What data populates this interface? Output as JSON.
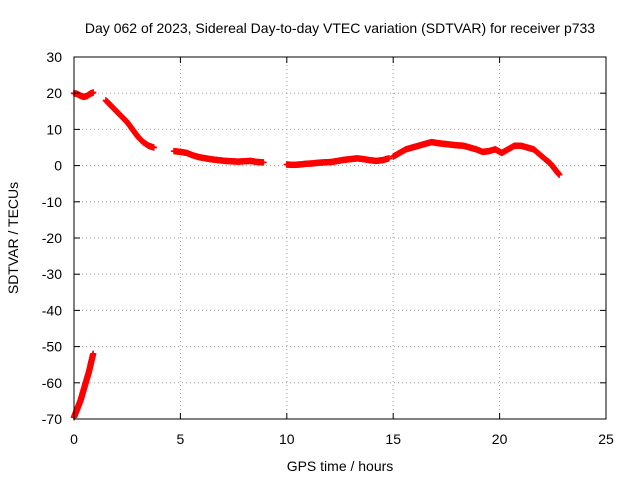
{
  "chart_data": {
    "type": "scatter",
    "title": "Day 062 of 2023, Sidereal Day-to-day VTEC variation (SDTVAR) for receiver p733",
    "xlabel": "GPS time / hours",
    "ylabel": "SDTVAR / TECUs",
    "xlim": [
      0,
      25
    ],
    "ylim": [
      -70,
      30
    ],
    "xticks": [
      "0",
      "5",
      "10",
      "15",
      "20",
      "25"
    ],
    "yticks": [
      "30",
      "20",
      "10",
      "0",
      "-10",
      "-20",
      "-30",
      "-40",
      "-50",
      "-60",
      "-70"
    ],
    "grid": true,
    "marker": "plus",
    "color": "#ff0000",
    "series": [
      {
        "name": "SDTVAR",
        "segments": [
          {
            "x": [
              0.0,
              0.1,
              0.2,
              0.3,
              0.4,
              0.5,
              0.6,
              0.7,
              0.8,
              0.9
            ],
            "y": [
              -69.5,
              -68.0,
              -66.5,
              -65.0,
              -63.0,
              -61.0,
              -59.0,
              -57.0,
              -54.5,
              -52.0
            ]
          },
          {
            "x": [
              0.0,
              0.15,
              0.3,
              0.45,
              0.6,
              0.75,
              0.9
            ],
            "y": [
              20.0,
              19.8,
              19.3,
              19.0,
              19.2,
              19.8,
              20.2
            ]
          },
          {
            "x": [
              1.5,
              1.75,
              2.0,
              2.25,
              2.5,
              2.75,
              3.0,
              3.25,
              3.5,
              3.75
            ],
            "y": [
              18.0,
              16.5,
              15.0,
              13.5,
              12.0,
              10.0,
              8.0,
              6.5,
              5.5,
              5.0
            ]
          },
          {
            "x": [
              4.7,
              5.0,
              5.3,
              5.6,
              5.9,
              6.2,
              6.5,
              6.8,
              7.1,
              7.4,
              7.7,
              8.0,
              8.3,
              8.6,
              8.9
            ],
            "y": [
              4.0,
              3.8,
              3.5,
              2.8,
              2.3,
              2.0,
              1.7,
              1.5,
              1.3,
              1.2,
              1.1,
              1.2,
              1.3,
              1.0,
              0.9
            ]
          },
          {
            "x": [
              10.0,
              10.3,
              10.6,
              10.9,
              11.2,
              11.5,
              11.8,
              12.1,
              12.4,
              12.7,
              13.0,
              13.3,
              13.6,
              13.9,
              14.2,
              14.5,
              14.8
            ],
            "y": [
              0.3,
              0.2,
              0.3,
              0.5,
              0.6,
              0.8,
              0.9,
              1.0,
              1.3,
              1.6,
              1.8,
              2.0,
              1.8,
              1.5,
              1.3,
              1.5,
              2.0
            ]
          },
          {
            "x": [
              15.0,
              15.3,
              15.6,
              15.9,
              16.2,
              16.5,
              16.8,
              17.1,
              17.4,
              17.7,
              18.0,
              18.3,
              18.6,
              18.9,
              19.2,
              19.5,
              19.8,
              20.1,
              20.4,
              20.7,
              21.0,
              21.3,
              21.6,
              21.9,
              22.2,
              22.4,
              22.6,
              22.8
            ],
            "y": [
              2.5,
              3.5,
              4.5,
              5.0,
              5.5,
              6.0,
              6.5,
              6.2,
              6.0,
              5.8,
              5.6,
              5.5,
              5.0,
              4.5,
              3.8,
              4.0,
              4.5,
              3.5,
              4.5,
              5.5,
              5.5,
              5.0,
              4.5,
              3.0,
              1.5,
              0.5,
              -1.0,
              -2.5
            ]
          }
        ]
      }
    ]
  }
}
